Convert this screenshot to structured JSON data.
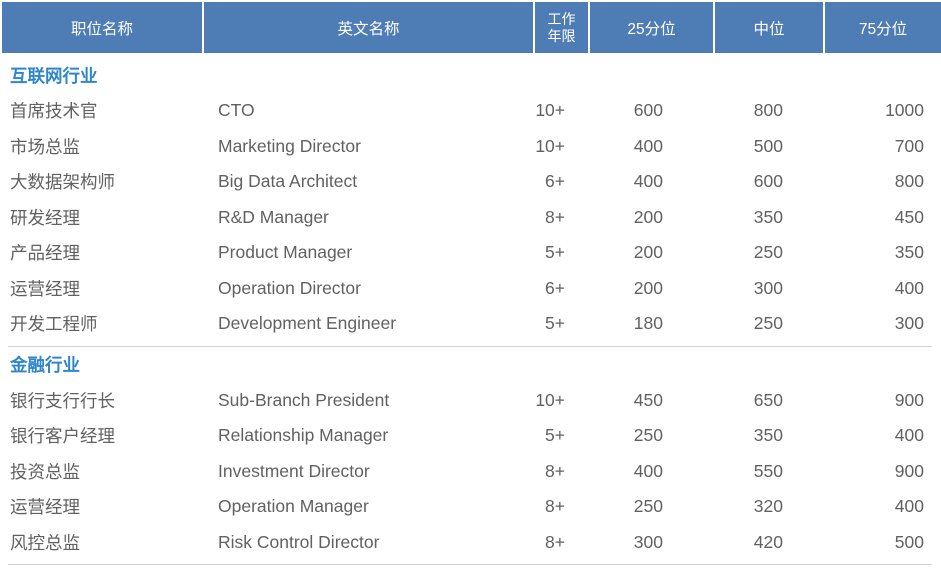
{
  "colors": {
    "header_background": "#4E7DB5",
    "header_text": "#FFFFFF",
    "section_title_text": "#2E86CE",
    "body_text": "#616161",
    "divider_line": "#D2D2D2"
  },
  "table": {
    "header": {
      "columns": [
        {
          "label": "职位名称"
        },
        {
          "label": "英文名称"
        },
        {
          "label_line1": "工作",
          "label_line2": "年限"
        },
        {
          "label": "25分位"
        },
        {
          "label": "中位"
        },
        {
          "label": "75分位"
        }
      ]
    },
    "sections": [
      {
        "title": "互联网行业",
        "rows": [
          {
            "position_cn": "首席技术官",
            "position_en": "CTO",
            "years": "10+",
            "p25": "600",
            "median": "800",
            "p75": "1000"
          },
          {
            "position_cn": "市场总监",
            "position_en": "Marketing Director",
            "years": "10+",
            "p25": "400",
            "median": "500",
            "p75": "700"
          },
          {
            "position_cn": "大数据架构师",
            "position_en": "Big Data Architect",
            "years": "6+",
            "p25": "400",
            "median": "600",
            "p75": "800"
          },
          {
            "position_cn": "研发经理",
            "position_en": "R&D Manager",
            "years": "8+",
            "p25": "200",
            "median": "350",
            "p75": "450"
          },
          {
            "position_cn": "产品经理",
            "position_en": "Product Manager",
            "years": "5+",
            "p25": "200",
            "median": "250",
            "p75": "350"
          },
          {
            "position_cn": "运营经理",
            "position_en": "Operation Director",
            "years": "6+",
            "p25": "200",
            "median": "300",
            "p75": "400"
          },
          {
            "position_cn": "开发工程师",
            "position_en": "Development Engineer",
            "years": "5+",
            "p25": "180",
            "median": "250",
            "p75": "300"
          }
        ]
      },
      {
        "title": "金融行业",
        "rows": [
          {
            "position_cn": "银行支行行长",
            "position_en": "Sub-Branch President",
            "years": "10+",
            "p25": "450",
            "median": "650",
            "p75": "900"
          },
          {
            "position_cn": "银行客户经理",
            "position_en": "Relationship Manager",
            "years": "5+",
            "p25": "250",
            "median": "350",
            "p75": "400"
          },
          {
            "position_cn": "投资总监",
            "position_en": "Investment Director",
            "years": "8+",
            "p25": "400",
            "median": "550",
            "p75": "900"
          },
          {
            "position_cn": "运营经理",
            "position_en": "Operation Manager",
            "years": "8+",
            "p25": "250",
            "median": "320",
            "p75": "400"
          },
          {
            "position_cn": "风控总监",
            "position_en": "Risk Control Director",
            "years": "8+",
            "p25": "300",
            "median": "420",
            "p75": "500"
          }
        ]
      }
    ]
  }
}
